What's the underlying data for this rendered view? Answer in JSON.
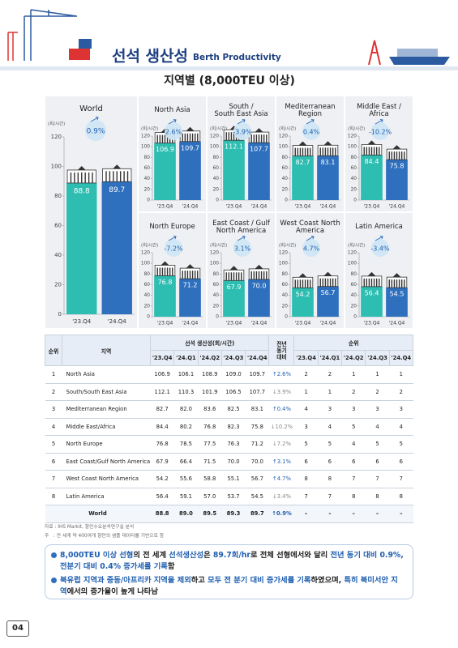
{
  "header": {
    "title": "선석 생산성",
    "title_en": "Berth Productivity",
    "subtitle": "지역별 (8,000TEU 이상)"
  },
  "chart_data": [
    {
      "type": "bar",
      "title": "World",
      "y_label": "(회/시간)",
      "change_label": "0.9%",
      "categories": [
        "'23.Q4",
        "'24.Q4"
      ],
      "values": [
        88.8,
        89.7
      ],
      "colors": [
        "#2dbdb1",
        "#2e6fbe"
      ],
      "ylim": [
        0,
        120
      ],
      "yticks": [
        0,
        20,
        40,
        60,
        80,
        100,
        120
      ]
    },
    {
      "type": "bar",
      "title": "North Asia",
      "y_label": "(회/시간)",
      "change_label": "2.6%",
      "categories": [
        "'23.Q4",
        "'24.Q4"
      ],
      "values": [
        106.9,
        109.7
      ],
      "colors": [
        "#2dbdb1",
        "#2e6fbe"
      ],
      "ylim": [
        0,
        120
      ],
      "yticks": [
        0,
        20,
        40,
        60,
        80,
        100,
        120
      ]
    },
    {
      "type": "bar",
      "title": "South /\nSouth East Asia",
      "y_label": "(회/시간)",
      "change_label": "-3.9%",
      "categories": [
        "'23.Q4",
        "'24.Q4"
      ],
      "values": [
        112.1,
        107.7
      ],
      "colors": [
        "#2dbdb1",
        "#2e6fbe"
      ],
      "ylim": [
        0,
        120
      ],
      "yticks": [
        0,
        20,
        40,
        60,
        80,
        100,
        120
      ]
    },
    {
      "type": "bar",
      "title": "Mediterranean\nRegion",
      "y_label": "(회/시간)",
      "change_label": "0.4%",
      "categories": [
        "'23.Q4",
        "'24.Q4"
      ],
      "values": [
        82.7,
        83.1
      ],
      "colors": [
        "#2dbdb1",
        "#2e6fbe"
      ],
      "ylim": [
        0,
        120
      ],
      "yticks": [
        0,
        20,
        40,
        60,
        80,
        100,
        120
      ]
    },
    {
      "type": "bar",
      "title": "Middle East /\nAfrica",
      "y_label": "(회/시간)",
      "change_label": "-10.2%",
      "categories": [
        "'23.Q4",
        "'24.Q4"
      ],
      "values": [
        84.4,
        75.8
      ],
      "colors": [
        "#2dbdb1",
        "#2e6fbe"
      ],
      "ylim": [
        0,
        120
      ],
      "yticks": [
        0,
        20,
        40,
        60,
        80,
        100,
        120
      ]
    },
    {
      "type": "bar",
      "title": "North Europe",
      "y_label": "(회/시간)",
      "change_label": "-7.2%",
      "categories": [
        "'23.Q4",
        "'24.Q4"
      ],
      "values": [
        76.8,
        71.2
      ],
      "colors": [
        "#2dbdb1",
        "#2e6fbe"
      ],
      "ylim": [
        0,
        120
      ],
      "yticks": [
        0,
        20,
        40,
        60,
        80,
        100,
        120
      ]
    },
    {
      "type": "bar",
      "title": "East Coast / Gulf\nNorth America",
      "y_label": "(회/시간)",
      "change_label": "3.1%",
      "categories": [
        "'23.Q4",
        "'24.Q4"
      ],
      "values": [
        67.9,
        70
      ],
      "value_labels": [
        "67.9",
        "70.0"
      ],
      "colors": [
        "#2dbdb1",
        "#2e6fbe"
      ],
      "ylim": [
        0,
        120
      ],
      "yticks": [
        0,
        20,
        40,
        60,
        80,
        100,
        120
      ]
    },
    {
      "type": "bar",
      "title": "West Coast North\nAmerica",
      "y_label": "(회/시간)",
      "change_label": "4.7%",
      "categories": [
        "'23.Q4",
        "'24.Q4"
      ],
      "values": [
        54.2,
        56.7
      ],
      "colors": [
        "#2dbdb1",
        "#2e6fbe"
      ],
      "ylim": [
        0,
        120
      ],
      "yticks": [
        0,
        20,
        40,
        60,
        80,
        100,
        120
      ]
    },
    {
      "type": "bar",
      "title": "Latin America",
      "y_label": "(회/시간)",
      "change_label": "-3.4%",
      "categories": [
        "'23.Q4",
        "'24.Q4"
      ],
      "values": [
        56.4,
        54.5
      ],
      "colors": [
        "#2dbdb1",
        "#2e6fbe"
      ],
      "ylim": [
        0,
        120
      ],
      "yticks": [
        0,
        20,
        40,
        60,
        80,
        100,
        120
      ]
    }
  ],
  "table": {
    "header": {
      "rank": "순위",
      "region": "지역",
      "productivity": "선석 생산성(회/시간)",
      "yoy": "전년\n동기\n대비",
      "rank_group": "순위",
      "quarters": [
        "'23.Q4",
        "'24.Q1",
        "'24.Q2",
        "'24.Q3",
        "'24.Q4"
      ]
    },
    "rows": [
      [
        "1",
        "North Asia",
        "106.9",
        "106.1",
        "108.9",
        "109.0",
        "109.7",
        "↑2.6%",
        "2",
        "2",
        "1",
        "1",
        "1"
      ],
      [
        "2",
        "South/South East Asia",
        "112.1",
        "110.3",
        "101.9",
        "106.5",
        "107.7",
        "↓3.9%",
        "1",
        "1",
        "2",
        "2",
        "2"
      ],
      [
        "3",
        "Mediterranean Region",
        "82.7",
        "82.0",
        "83.6",
        "82.5",
        "83.1",
        "↑0.4%",
        "4",
        "3",
        "3",
        "3",
        "3"
      ],
      [
        "4",
        "Middle East/Africa",
        "84.4",
        "80.2",
        "76.8",
        "82.3",
        "75.8",
        "↓10.2%",
        "3",
        "4",
        "5",
        "4",
        "4"
      ],
      [
        "5",
        "North Europe",
        "76.8",
        "78.5",
        "77.5",
        "76.3",
        "71.2",
        "↓7.2%",
        "5",
        "5",
        "4",
        "5",
        "5"
      ],
      [
        "6",
        "East Coast/Gulf North America",
        "67.9",
        "66.4",
        "71.5",
        "70.0",
        "70.0",
        "↑3.1%",
        "6",
        "6",
        "6",
        "6",
        "6"
      ],
      [
        "7",
        "West Coast North America",
        "54.2",
        "55.6",
        "58.8",
        "55.1",
        "56.7",
        "↑4.7%",
        "8",
        "8",
        "7",
        "7",
        "7"
      ],
      [
        "8",
        "Latin America",
        "56.4",
        "59.1",
        "57.0",
        "53.7",
        "54.5",
        "↓3.4%",
        "7",
        "7",
        "8",
        "8",
        "8"
      ]
    ],
    "total": [
      "World",
      "88.8",
      "89.0",
      "89.5",
      "89.3",
      "89.7",
      "↑0.9%",
      "–",
      "–",
      "–",
      "–",
      "–"
    ]
  },
  "notes": [
    "자료 : IHS Markit, 항만수요분석연구실 분석",
    "주   : 전 세계 약 400여개 항만의 샘플 데이터를 기반으로 함"
  ],
  "bullets": [
    [
      {
        "text": "8,000TEU 이상 선형",
        "color": "#1f5fb0"
      },
      {
        "text": "의 전 세계 ",
        "color": "#222222"
      },
      {
        "text": "선석생산성",
        "color": "#1f5fb0"
      },
      {
        "text": "은 ",
        "color": "#222222"
      },
      {
        "text": "89.7회/hr",
        "color": "#1f5fb0"
      },
      {
        "text": "로 전체 선형에서와 달리 ",
        "color": "#222222"
      },
      {
        "text": "전년 동기 대비 0.9%, 전분기 대비 0.4% 증가세를 기록",
        "color": "#1f5fb0"
      },
      {
        "text": "함",
        "color": "#222222"
      }
    ],
    [
      {
        "text": "북유럽 지역과 중동/아프리카 지역을 제외",
        "color": "#1f5fb0"
      },
      {
        "text": "하고 ",
        "color": "#222222"
      },
      {
        "text": "모두 전 분기 대비 증가세를 기록",
        "color": "#1f5fb0"
      },
      {
        "text": "하였으며, ",
        "color": "#222222"
      },
      {
        "text": "특히 북미서안 지역",
        "color": "#1f5fb0"
      },
      {
        "text": "에서의 증가율이 높게 나타남",
        "color": "#222222"
      }
    ]
  ],
  "page_number": "04"
}
